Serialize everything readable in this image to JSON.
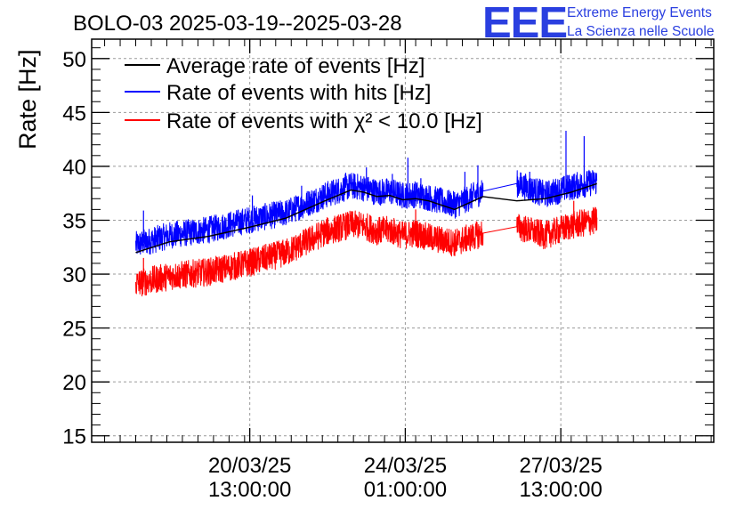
{
  "chart_data": {
    "type": "line",
    "title": "BOLO-03 2025-03-19--2025-03-28",
    "ylabel": "Rate [Hz]",
    "xlabel": "",
    "ylim": [
      14.4,
      51.8
    ],
    "yticks": [
      15,
      20,
      25,
      30,
      35,
      40,
      45,
      50
    ],
    "x_unit": "hours since start of plotted range (2025-03-19 00:00)",
    "xlim": [
      0,
      240
    ],
    "xticks": [
      {
        "x": 61,
        "label_date": "20/03/25",
        "label_time": "13:00:00"
      },
      {
        "x": 121,
        "label_date": "24/03/25",
        "label_time": "01:00:00"
      },
      {
        "x": 181,
        "label_date": "27/03/25",
        "label_time": "13:00:00"
      }
    ],
    "gap": {
      "from_hour": 151,
      "to_hour": 164
    },
    "grid": true,
    "legend_position": "top-left",
    "series": [
      {
        "name": "Average rate of events [Hz]",
        "color": "#000000",
        "x": [
          17,
          30,
          45,
          60,
          75,
          90,
          100,
          105,
          110,
          115,
          120,
          125,
          130,
          140,
          151,
          164,
          175,
          185,
          195
        ],
        "y": [
          32.0,
          33.0,
          33.5,
          34.3,
          35.2,
          36.8,
          37.8,
          37.6,
          37.2,
          37.3,
          36.9,
          37.0,
          36.8,
          36.0,
          37.2,
          36.8,
          37.0,
          37.6,
          38.4
        ]
      },
      {
        "name": "Rate of events with hits [Hz]",
        "color": "#0000ff",
        "x": [
          17,
          30,
          45,
          60,
          75,
          90,
          100,
          105,
          110,
          115,
          120,
          125,
          130,
          140,
          151,
          164,
          175,
          185,
          195
        ],
        "y": [
          32.7,
          33.6,
          34.1,
          35.0,
          35.7,
          37.3,
          38.2,
          38.0,
          37.6,
          37.7,
          37.3,
          37.4,
          37.1,
          36.4,
          37.7,
          38.4,
          37.4,
          38.1,
          38.6
        ],
        "spikes": [
          {
            "x": 20,
            "y": 35.9
          },
          {
            "x": 62,
            "y": 37.3
          },
          {
            "x": 81,
            "y": 38.2
          },
          {
            "x": 98,
            "y": 39.4
          },
          {
            "x": 106,
            "y": 39.9
          },
          {
            "x": 116,
            "y": 39.3
          },
          {
            "x": 122,
            "y": 40.8
          },
          {
            "x": 127,
            "y": 38.9
          },
          {
            "x": 140,
            "y": 37.6
          },
          {
            "x": 144,
            "y": 39.5
          },
          {
            "x": 149,
            "y": 40.1
          },
          {
            "x": 169,
            "y": 39.5
          },
          {
            "x": 183,
            "y": 43.3
          },
          {
            "x": 190,
            "y": 42.8
          }
        ]
      },
      {
        "name": "Rate of events with χ² < 10.0 [Hz]",
        "color": "#ff0000",
        "x": [
          17,
          30,
          45,
          60,
          75,
          90,
          100,
          105,
          110,
          115,
          120,
          125,
          130,
          140,
          151,
          164,
          175,
          185,
          195
        ],
        "y": [
          29.1,
          29.8,
          30.2,
          31.0,
          32.0,
          33.9,
          34.6,
          34.5,
          34.0,
          34.1,
          33.6,
          33.8,
          33.4,
          32.9,
          33.8,
          34.4,
          33.6,
          34.5,
          35.0
        ],
        "spikes": [
          {
            "x": 20,
            "y": 31.5
          },
          {
            "x": 83,
            "y": 33.3
          },
          {
            "x": 125,
            "y": 36.0
          },
          {
            "x": 144,
            "y": 34.2
          },
          {
            "x": 186,
            "y": 36.8
          }
        ]
      }
    ]
  },
  "logo": {
    "letters": "EEE",
    "line1": "Extreme Energy Events",
    "line2": "La Scienza nelle Scuole"
  }
}
